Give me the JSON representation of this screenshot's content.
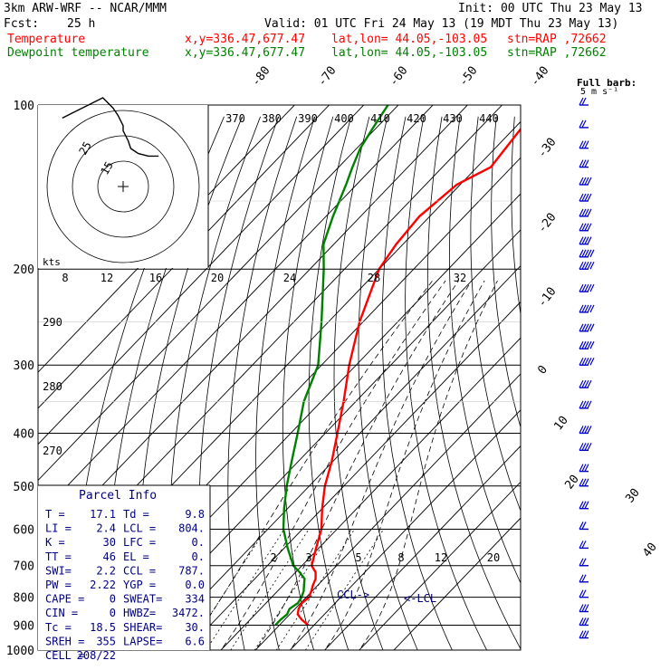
{
  "header": {
    "model": "3km ARW-WRF -- NCAR/MMM",
    "init": "Init: 00 UTC Thu 23 May 13",
    "fcst_label": "Fcst:",
    "fcst_value": "25 h",
    "valid": "Valid: 01 UTC Fri 24 May 13 (19 MDT Thu 23 May 13)",
    "temp_label": "Temperature",
    "dew_label": "Dewpoint temperature",
    "xy": "x,y=336.47,677.47",
    "latlon": "lat,lon= 44.05,-103.05",
    "stn": "stn=RAP ,72662",
    "full_barb": "Full barb:",
    "barb_unit": "5 m s⁻¹"
  },
  "colors": {
    "temperature": "#ff0000",
    "dewpoint": "#008000",
    "parcel_text": "#000080",
    "isotherm_label": "#000000"
  },
  "parcel_info": {
    "title": "Parcel Info",
    "rows": [
      [
        "T  =",
        "17.1",
        "Td  =",
        "9.8"
      ],
      [
        "LI =",
        "2.4",
        "LCL =",
        "804."
      ],
      [
        "K  =",
        "30",
        "LFC =",
        "0."
      ],
      [
        "TT =",
        "46",
        "EL  =",
        "0."
      ],
      [
        "SWI=",
        "2.2",
        "CCL =",
        "787."
      ],
      [
        "PW =",
        "2.22",
        "YGP =",
        "0.0"
      ],
      [
        "CAPE =",
        "0",
        "SWEAT=",
        "334"
      ],
      [
        "CIN =",
        "0",
        "HWBZ=",
        "3472."
      ],
      [
        "Tc =",
        "18.5",
        "SHEAR=",
        "30."
      ],
      [
        "SREH =",
        "355",
        "LAPSE=",
        "6.6"
      ],
      [
        "CELL =",
        "208/22",
        "",
        ""
      ]
    ]
  },
  "chart_data": {
    "type": "line",
    "title": "Skew-T log-P sounding",
    "pressure_levels": [
      "100",
      "200",
      "300",
      "400",
      "500",
      "600",
      "700",
      "800",
      "900",
      "1000"
    ],
    "skew_temp_labels": [
      "-80",
      "-70",
      "-60",
      "-50",
      "-40",
      "-30",
      "-20",
      "-10",
      "0",
      "10",
      "20",
      "30",
      "40"
    ],
    "theta_labels": [
      "370",
      "380",
      "390",
      "400",
      "410",
      "420",
      "430",
      "440"
    ],
    "theta_low_labels": [
      "290",
      "280",
      "270"
    ],
    "hodo_speed_labels": [
      "8",
      "12",
      "16",
      "20",
      "24",
      "28",
      "32"
    ],
    "hodo_unit": "kts",
    "hodo_rings": [
      "25",
      "15"
    ],
    "mixing_ratio_labels": [
      "2",
      "3",
      "5",
      "8",
      "12",
      "20"
    ],
    "ccl_label": "CCL->",
    "lcl_label": "<-LCL",
    "series": [
      {
        "name": "Temperature",
        "color": "#ff0000",
        "p": [
          900,
          880,
          860,
          840,
          820,
          800,
          780,
          760,
          740,
          720,
          700,
          650,
          600,
          550,
          500,
          450,
          400,
          350,
          300,
          250,
          200,
          180,
          160,
          140,
          130,
          120,
          110,
          100
        ],
        "t": [
          18.3,
          15.0,
          12.3,
          11.0,
          10.4,
          10.8,
          9.8,
          8.6,
          7.6,
          5.8,
          2.8,
          -0.8,
          -4.5,
          -10.0,
          -15.5,
          -20.4,
          -26.5,
          -33.5,
          -42.0,
          -51.0,
          -60.0,
          -62.0,
          -63.0,
          -61.0,
          -56.0,
          -57.0,
          -58.0,
          -58.0
        ]
      },
      {
        "name": "Dewpoint temperature",
        "color": "#008000",
        "p": [
          900,
          880,
          860,
          840,
          820,
          800,
          780,
          760,
          740,
          720,
          700,
          650,
          600,
          550,
          500,
          450,
          400,
          350,
          300,
          250,
          200,
          180,
          160,
          140,
          130,
          120,
          110,
          100
        ],
        "t": [
          8.8,
          8.8,
          9.2,
          8.4,
          9.2,
          8.6,
          7.6,
          6.0,
          4.4,
          1.2,
          -2.5,
          -9.0,
          -15.5,
          -21.0,
          -26.5,
          -32.0,
          -38.0,
          -45.0,
          -51.0,
          -62.0,
          -76.0,
          -83.0,
          -88.0,
          -93.0,
          -96.0,
          -99.0,
          -101.0,
          -103.0
        ]
      }
    ],
    "hodograph": {
      "u": [
        -24,
        -20,
        -14,
        -8,
        -4,
        -2,
        -1,
        0,
        0,
        2,
        3,
        6,
        10,
        14
      ],
      "v": [
        27,
        29,
        32,
        35,
        31,
        28,
        26,
        24,
        22,
        18,
        15,
        13,
        12,
        12
      ]
    },
    "wind_barbs": {
      "p": [
        100,
        110,
        120,
        130,
        140,
        150,
        160,
        170,
        180,
        190,
        200,
        220,
        240,
        260,
        280,
        300,
        330,
        360,
        400,
        430,
        470,
        500,
        550,
        600,
        650,
        700,
        750,
        800,
        850,
        900,
        950
      ],
      "speed_kt": [
        20,
        22,
        26,
        30,
        35,
        38,
        40,
        42,
        42,
        45,
        48,
        50,
        50,
        50,
        48,
        45,
        42,
        40,
        38,
        36,
        30,
        28,
        25,
        22,
        20,
        18,
        18,
        20,
        25,
        30,
        30
      ]
    }
  }
}
